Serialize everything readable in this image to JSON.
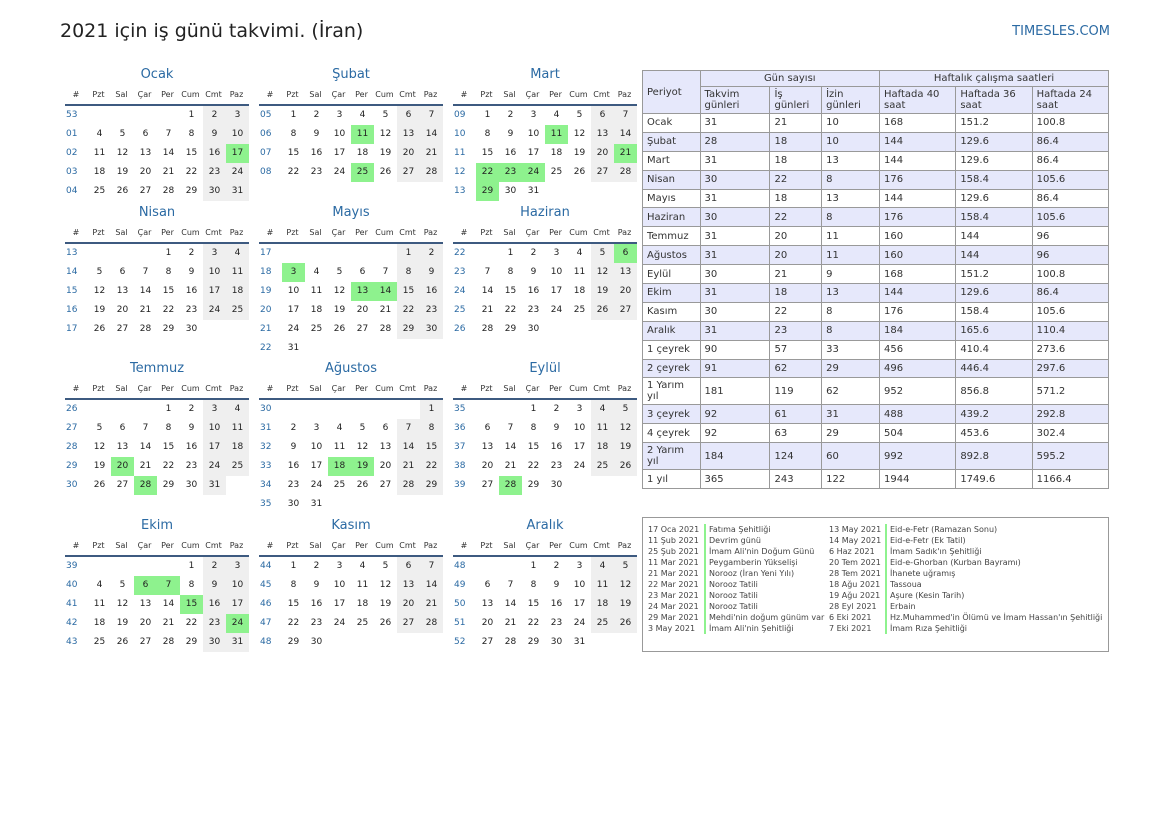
{
  "header": {
    "title": "2021 için iş günü takvimi. (İran)",
    "site": "TIMESLES.COM"
  },
  "weekday_headers": [
    "#",
    "Pzt",
    "Sal",
    "Çar",
    "Per",
    "Cum",
    "Cmt",
    "Paz"
  ],
  "months": [
    {
      "name": "Ocak",
      "weeks": [
        53,
        1,
        2,
        3,
        4
      ],
      "start": 4,
      "days": 31,
      "holidays": [
        17
      ]
    },
    {
      "name": "Şubat",
      "weeks": [
        5,
        6,
        7,
        8
      ],
      "start": 0,
      "days": 28,
      "holidays": [
        11,
        25
      ]
    },
    {
      "name": "Mart",
      "weeks": [
        9,
        10,
        11,
        12,
        13
      ],
      "start": 0,
      "days": 31,
      "holidays": [
        11,
        21,
        22,
        23,
        24,
        29
      ]
    },
    {
      "name": "Nisan",
      "weeks": [
        13,
        14,
        15,
        16,
        17
      ],
      "start": 3,
      "days": 30,
      "holidays": []
    },
    {
      "name": "Mayıs",
      "weeks": [
        17,
        18,
        19,
        20,
        21,
        22
      ],
      "start": 5,
      "days": 31,
      "holidays": [
        3,
        13,
        14
      ]
    },
    {
      "name": "Haziran",
      "weeks": [
        22,
        23,
        24,
        25,
        26
      ],
      "start": 1,
      "days": 30,
      "holidays": [
        6
      ]
    },
    {
      "name": "Temmuz",
      "weeks": [
        26,
        27,
        28,
        29,
        30
      ],
      "start": 3,
      "days": 31,
      "holidays": [
        20,
        28
      ]
    },
    {
      "name": "Ağustos",
      "weeks": [
        30,
        31,
        32,
        33,
        34,
        35
      ],
      "start": 6,
      "days": 31,
      "holidays": [
        18,
        19
      ]
    },
    {
      "name": "Eylül",
      "weeks": [
        35,
        36,
        37,
        38,
        39
      ],
      "start": 2,
      "days": 30,
      "holidays": [
        28
      ]
    },
    {
      "name": "Ekim",
      "weeks": [
        39,
        40,
        41,
        42,
        43
      ],
      "start": 4,
      "days": 31,
      "holidays": [
        6,
        7,
        15,
        24
      ]
    },
    {
      "name": "Kasım",
      "weeks": [
        44,
        45,
        46,
        47,
        48
      ],
      "start": 0,
      "days": 30,
      "holidays": []
    },
    {
      "name": "Aralık",
      "weeks": [
        48,
        49,
        50,
        51,
        52
      ],
      "start": 2,
      "days": 31,
      "holidays": []
    }
  ],
  "stats": {
    "h_period": "Periyot",
    "h_days": "Gün sayısı",
    "h_hours": "Haftalık çalışma saatleri",
    "h_cal": "Takvim günleri",
    "h_work": "İş günleri",
    "h_off": "İzin günleri",
    "h_40": "Haftada 40 saat",
    "h_36": "Haftada 36 saat",
    "h_24": "Haftada 24 saat",
    "rows": [
      [
        "Ocak",
        "31",
        "21",
        "10",
        "168",
        "151.2",
        "100.8"
      ],
      [
        "Şubat",
        "28",
        "18",
        "10",
        "144",
        "129.6",
        "86.4"
      ],
      [
        "Mart",
        "31",
        "18",
        "13",
        "144",
        "129.6",
        "86.4"
      ],
      [
        "Nisan",
        "30",
        "22",
        "8",
        "176",
        "158.4",
        "105.6"
      ],
      [
        "Mayıs",
        "31",
        "18",
        "13",
        "144",
        "129.6",
        "86.4"
      ],
      [
        "Haziran",
        "30",
        "22",
        "8",
        "176",
        "158.4",
        "105.6"
      ],
      [
        "Temmuz",
        "31",
        "20",
        "11",
        "160",
        "144",
        "96"
      ],
      [
        "Ağustos",
        "31",
        "20",
        "11",
        "160",
        "144",
        "96"
      ],
      [
        "Eylül",
        "30",
        "21",
        "9",
        "168",
        "151.2",
        "100.8"
      ],
      [
        "Ekim",
        "31",
        "18",
        "13",
        "144",
        "129.6",
        "86.4"
      ],
      [
        "Kasım",
        "30",
        "22",
        "8",
        "176",
        "158.4",
        "105.6"
      ],
      [
        "Aralık",
        "31",
        "23",
        "8",
        "184",
        "165.6",
        "110.4"
      ],
      [
        "1 çeyrek",
        "90",
        "57",
        "33",
        "456",
        "410.4",
        "273.6"
      ],
      [
        "2 çeyrek",
        "91",
        "62",
        "29",
        "496",
        "446.4",
        "297.6"
      ],
      [
        "1 Yarım yıl",
        "181",
        "119",
        "62",
        "952",
        "856.8",
        "571.2"
      ],
      [
        "3 çeyrek",
        "92",
        "61",
        "31",
        "488",
        "439.2",
        "292.8"
      ],
      [
        "4 çeyrek",
        "92",
        "63",
        "29",
        "504",
        "453.6",
        "302.4"
      ],
      [
        "2 Yarım yıl",
        "184",
        "124",
        "60",
        "992",
        "892.8",
        "595.2"
      ],
      [
        "1 yıl",
        "365",
        "243",
        "122",
        "1944",
        "1749.6",
        "1166.4"
      ]
    ]
  },
  "holidays_left": [
    {
      "date": "17 Oca 2021",
      "name": "Fatıma Şehitliği"
    },
    {
      "date": "11 Şub 2021",
      "name": "Devrim günü"
    },
    {
      "date": "25 Şub 2021",
      "name": "İmam Ali'nin Doğum Günü"
    },
    {
      "date": "11 Mar 2021",
      "name": "Peygamberin Yükselişi"
    },
    {
      "date": "21 Mar 2021",
      "name": "Norooz (İran Yeni Yılı)"
    },
    {
      "date": "22 Mar 2021",
      "name": "Norooz Tatili"
    },
    {
      "date": "23 Mar 2021",
      "name": "Norooz Tatili"
    },
    {
      "date": "24 Mar 2021",
      "name": "Norooz Tatili"
    },
    {
      "date": "29 Mar 2021",
      "name": "Mehdi'nin doğum günüm var"
    },
    {
      "date": "3 May 2021",
      "name": "İmam Ali'nin Şehitliği"
    }
  ],
  "holidays_right": [
    {
      "date": "13 May 2021",
      "name": "Eid-e-Fetr (Ramazan Sonu)"
    },
    {
      "date": "14 May 2021",
      "name": "Eid-e-Fetr (Ek Tatil)"
    },
    {
      "date": "6 Haz 2021",
      "name": "İmam Sadık'ın Şehitliği"
    },
    {
      "date": "20 Tem 2021",
      "name": "Eid-e-Ghorban (Kurban Bayramı)"
    },
    {
      "date": "28 Tem 2021",
      "name": "İhanete uğramış"
    },
    {
      "date": "18 Ağu 2021",
      "name": "Tassoua"
    },
    {
      "date": "19 Ağu 2021",
      "name": "Aşure (Kesin Tarih)"
    },
    {
      "date": "28 Eyl 2021",
      "name": "Erbain"
    },
    {
      "date": "6 Eki 2021",
      "name": "Hz.Muhammed'in Ölümü ve İmam Hassan'ın Şehitliği"
    },
    {
      "date": "7 Eki 2021",
      "name": "İmam Rıza Şehitliği"
    }
  ]
}
